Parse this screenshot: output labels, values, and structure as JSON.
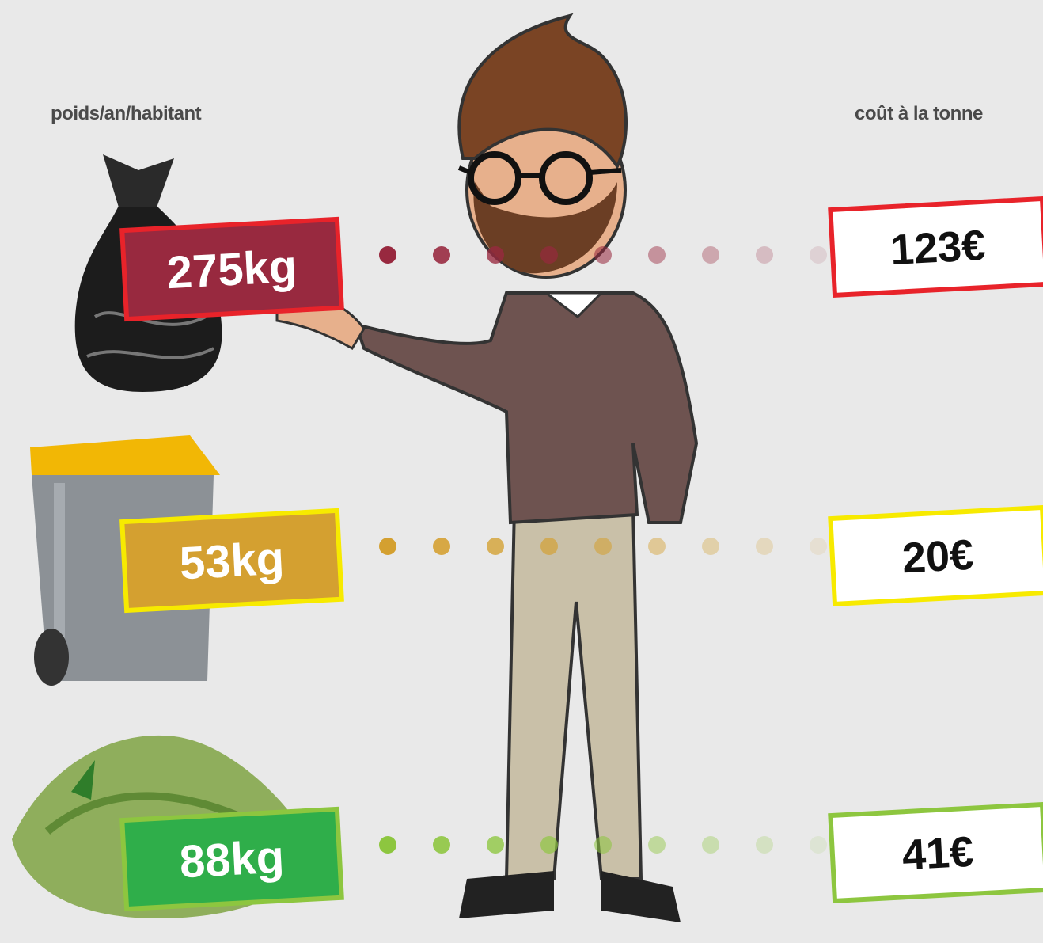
{
  "headers": {
    "left": "poids/an/habitant",
    "right": "coût à la tonne"
  },
  "rows": [
    {
      "weight": "275kg",
      "cost": "123€"
    },
    {
      "weight": "53kg",
      "cost": "20€"
    },
    {
      "weight": "88kg",
      "cost": "41€"
    }
  ]
}
